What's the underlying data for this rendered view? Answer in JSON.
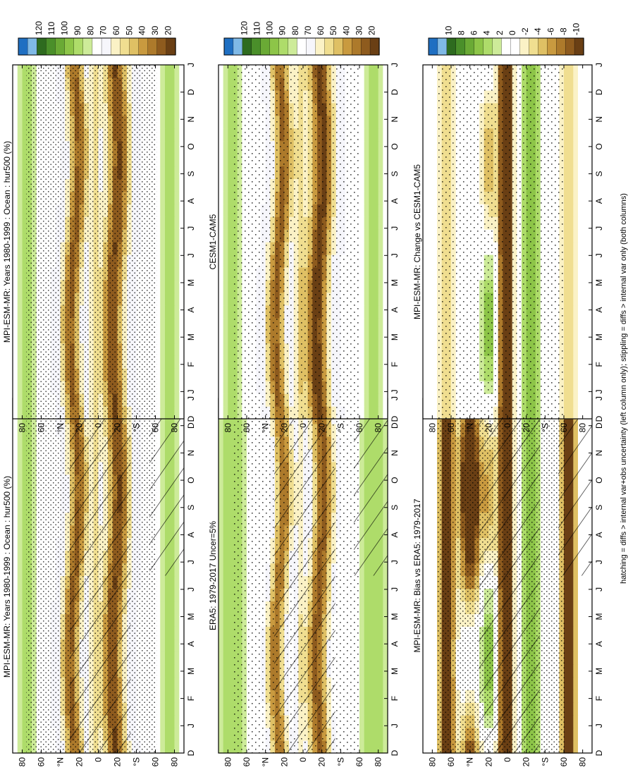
{
  "footnote": "hatching = diffs > internal var+obs uncertainty (left column only); stippling = diffs > internal var only (both columns)",
  "panels": [
    {
      "title": "MPI-ESM-MR: Years 1980-1999 : Ocean : hur500 (%)",
      "kind": "clim",
      "stipple": "strong",
      "hatch": true
    },
    {
      "title": "MPI-ESM-MR: Years 1980-1999 : Ocean : hur500 (%)",
      "kind": "clim",
      "stipple": "strong",
      "hatch": false
    },
    {
      "title": "ERA5: 1979-2017 Uncer=5%",
      "kind": "clim",
      "stipple": "medium",
      "hatch": true
    },
    {
      "title": "CESM1-CAM5",
      "kind": "clim",
      "stipple": "medium",
      "hatch": false
    },
    {
      "title": "MPI-ESM-MR: Bias vs ERA5: 1979-2017",
      "kind": "diff",
      "stipple": "strong",
      "hatch": true
    },
    {
      "title": "MPI-ESM-MR: Change vs CESM1-CAM5",
      "kind": "diff",
      "stipple": "medium",
      "hatch": false
    }
  ],
  "month_labels": [
    "D",
    "J",
    "F",
    "M",
    "A",
    "M",
    "J",
    "J",
    "A",
    "S",
    "O",
    "N",
    "D",
    "J"
  ],
  "lat_labels": [
    "80",
    "60",
    "°N",
    "20",
    "0",
    "20",
    "°S",
    "60",
    "80"
  ],
  "colorbars": {
    "clim": {
      "labels": [
        "120",
        "110",
        "100",
        "90",
        "80",
        "70",
        "60",
        "50",
        "40",
        "30",
        "20"
      ],
      "colors": [
        "#1f6fc2",
        "#7fb9e6",
        "#2e6b1f",
        "#4a8f2a",
        "#6aaa35",
        "#8dc548",
        "#aedc6a",
        "#cdeb99",
        "#ffffff",
        "#f6f6fb",
        "#fbf2c6",
        "#f0de90",
        "#dfc064",
        "#c99a3f",
        "#ad7a2b",
        "#8e5b1e",
        "#6a3f14"
      ]
    },
    "diff": {
      "labels": [
        "10",
        "8",
        "6",
        "4",
        "2",
        "0",
        "-2",
        "-4",
        "-6",
        "-8",
        "-10"
      ],
      "colors": [
        "#1f6fc2",
        "#7fb9e6",
        "#2e6b1f",
        "#4a8f2a",
        "#6aaa35",
        "#8dc548",
        "#aedc6a",
        "#cdeb99",
        "#ffffff",
        "#ffffff",
        "#fbf2c6",
        "#f0de90",
        "#dfc064",
        "#c99a3f",
        "#ad7a2b",
        "#8e5b1e",
        "#6a3f14"
      ]
    }
  },
  "chart_data": [
    {
      "type": "heatmap",
      "panel": "MPI-ESM-MR: Years 1980-1999 : Ocean : hur500 (%)",
      "x": "month",
      "y": "latitude",
      "ylim": [
        -90,
        90
      ],
      "features": {
        "dry_subtropics": [
          25,
          -20
        ],
        "moist_equator": 0,
        "moist_highlat": [
          70,
          -70
        ]
      }
    },
    {
      "type": "heatmap",
      "panel": "MPI-ESM-MR: Years 1980-1999 : Ocean : hur500 (%)",
      "x": "month",
      "y": "latitude",
      "ylim": [
        -90,
        90
      ]
    },
    {
      "type": "heatmap",
      "panel": "ERA5: 1979-2017 Uncer=5%",
      "x": "month",
      "y": "latitude",
      "ylim": [
        -90,
        90
      ]
    },
    {
      "type": "heatmap",
      "panel": "CESM1-CAM5",
      "x": "month",
      "y": "latitude",
      "ylim": [
        -90,
        90
      ]
    },
    {
      "type": "heatmap",
      "panel": "MPI-ESM-MR: Bias vs ERA5: 1979-2017",
      "x": "month",
      "y": "latitude",
      "ylim": [
        -90,
        90
      ]
    },
    {
      "type": "heatmap",
      "panel": "MPI-ESM-MR: Change vs CESM1-CAM5",
      "x": "month",
      "y": "latitude",
      "ylim": [
        -90,
        90
      ]
    }
  ]
}
